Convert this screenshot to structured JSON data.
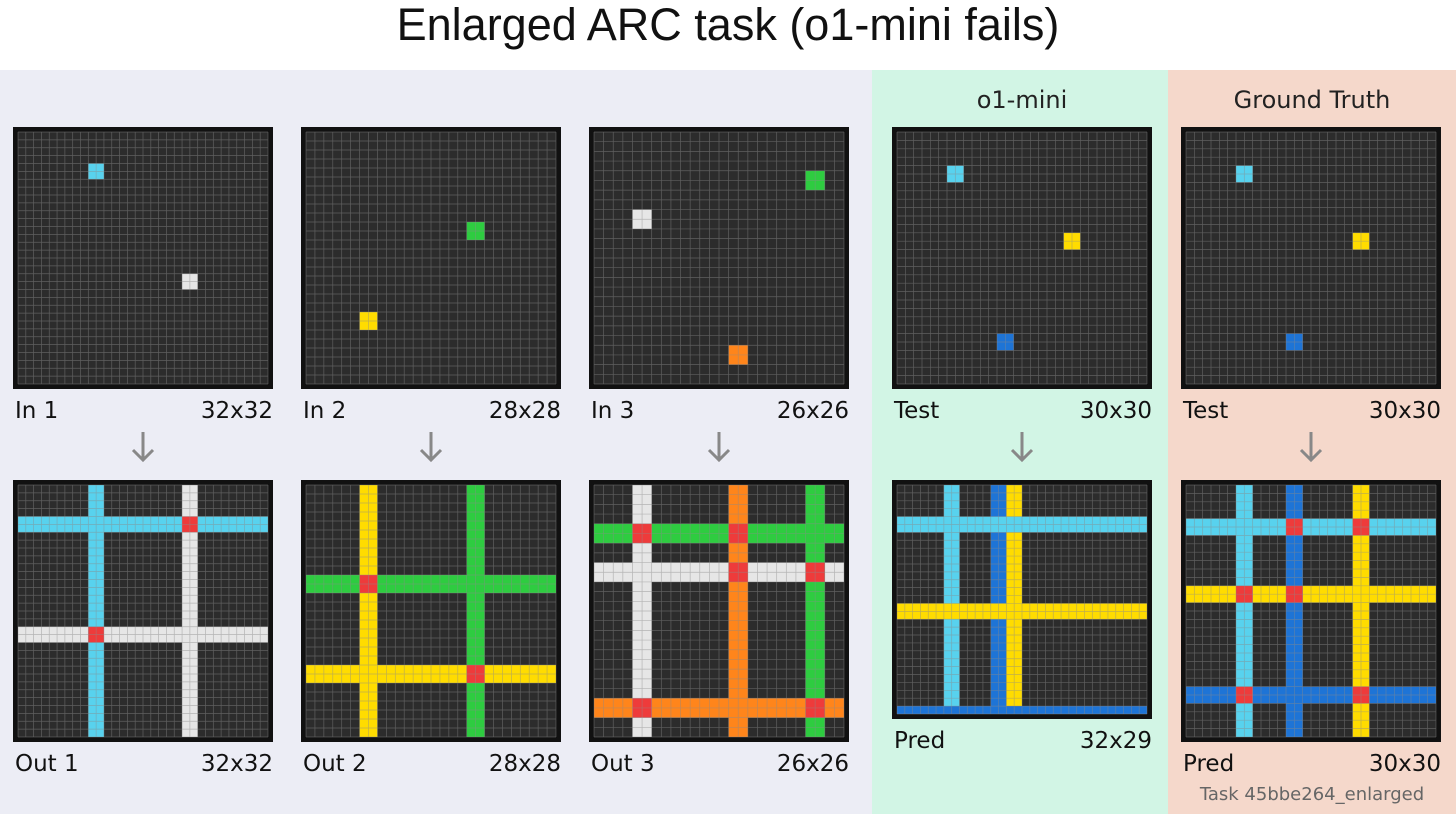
{
  "title": "Enlarged ARC task (o1-mini fails)",
  "examples": [
    {
      "input": {
        "label": "In 1",
        "size": "32x32"
      },
      "output": {
        "label": "Out 1",
        "size": "32x32"
      }
    },
    {
      "input": {
        "label": "In 2",
        "size": "28x28"
      },
      "output": {
        "label": "Out 2",
        "size": "28x28"
      }
    },
    {
      "input": {
        "label": "In 3",
        "size": "26x26"
      },
      "output": {
        "label": "Out 3",
        "size": "26x26"
      }
    }
  ],
  "o1_mini": {
    "header": "o1-mini",
    "test": {
      "label": "Test",
      "size": "30x30"
    },
    "pred": {
      "label": "Pred",
      "size": "32x29"
    }
  },
  "ground_truth": {
    "header": "Ground Truth",
    "test": {
      "label": "Test",
      "size": "30x30"
    },
    "pred": {
      "label": "Pred",
      "size": "30x30"
    },
    "task_id": "Task 45bbe264_enlarged"
  }
}
